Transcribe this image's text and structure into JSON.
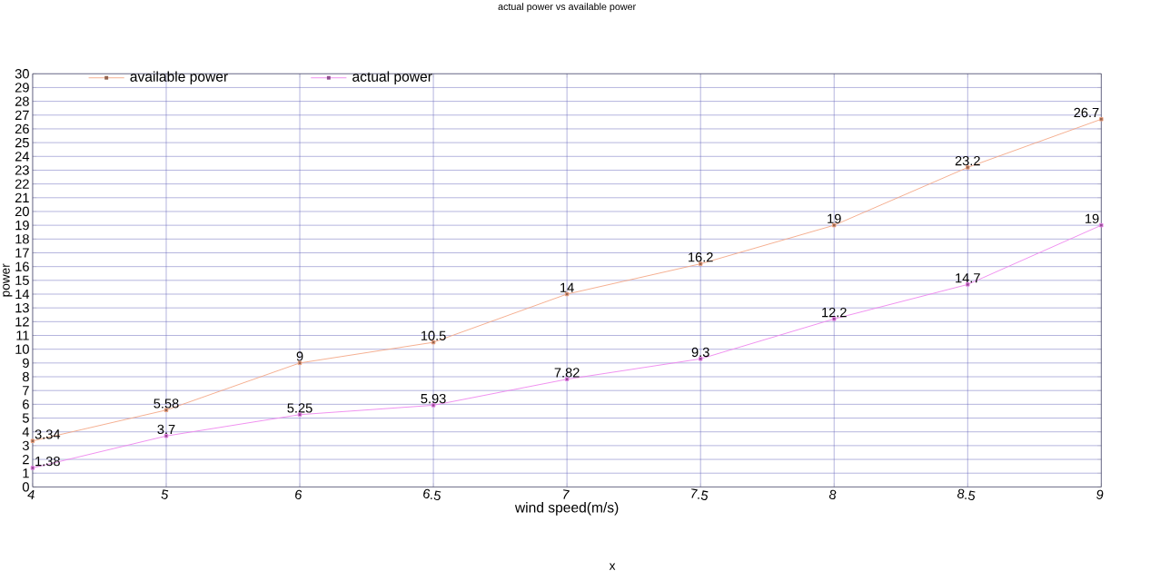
{
  "chart_data": {
    "type": "line",
    "title": "actual power vs available power",
    "xlabel": "wind speed(m/s)",
    "ylabel": "power",
    "annotations": [
      "x"
    ],
    "categories": [
      "4",
      "5",
      "6",
      "6.5",
      "7",
      "7.5",
      "8",
      "8.5",
      "9"
    ],
    "series": [
      {
        "name": "available power",
        "color": "#f4a582",
        "values": [
          3.34,
          5.58,
          9,
          10.5,
          14,
          16.2,
          19,
          23.2,
          26.7
        ]
      },
      {
        "name": "actual power",
        "color": "#ee82ee",
        "values": [
          1.38,
          3.7,
          5.25,
          5.93,
          7.82,
          9.3,
          12.2,
          14.7,
          19
        ]
      }
    ],
    "ylim": [
      0,
      30
    ],
    "yticks": [
      0,
      1,
      2,
      3,
      4,
      5,
      6,
      7,
      8,
      9,
      10,
      11,
      12,
      13,
      14,
      15,
      16,
      17,
      18,
      19,
      20,
      21,
      22,
      23,
      24,
      25,
      26,
      27,
      28,
      29,
      30
    ],
    "grid": true,
    "legend": "top left",
    "marker": "square",
    "line_style": "solid",
    "data_labels": true
  }
}
